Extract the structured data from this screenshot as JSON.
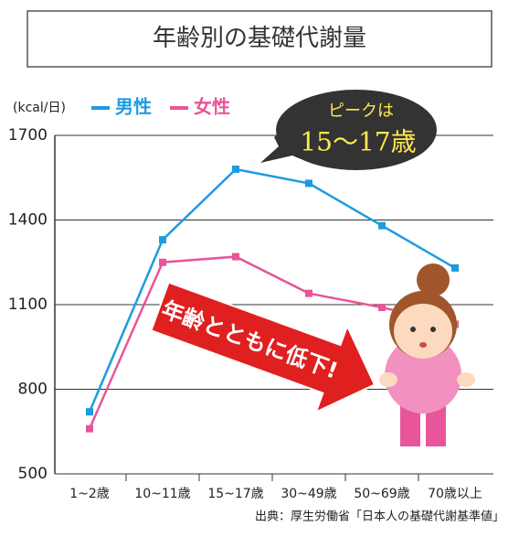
{
  "chart_data": {
    "type": "line",
    "title": "年齢別の基礎代謝量",
    "y_unit": "(kcal/日)",
    "categories": [
      "1~2歳",
      "10~11歳",
      "15~17歳",
      "30~49歳",
      "50~69歳",
      "70歳以上"
    ],
    "series": [
      {
        "name": "男性",
        "color": "#1e9be0",
        "values": [
          720,
          1330,
          1580,
          1530,
          1380,
          1230
        ]
      },
      {
        "name": "女性",
        "color": "#e8559a",
        "values": [
          660,
          1250,
          1270,
          1140,
          1090,
          1030
        ]
      }
    ],
    "ylim": [
      500,
      1700
    ],
    "yticks": [
      500,
      800,
      1100,
      1400,
      1700
    ],
    "grid": true,
    "callout": [
      "ピークは",
      "15〜17歳"
    ],
    "arrow_text": "年齢とともに低下!",
    "source": "出典：厚生労働省「日本人の基礎代謝基準値」"
  }
}
